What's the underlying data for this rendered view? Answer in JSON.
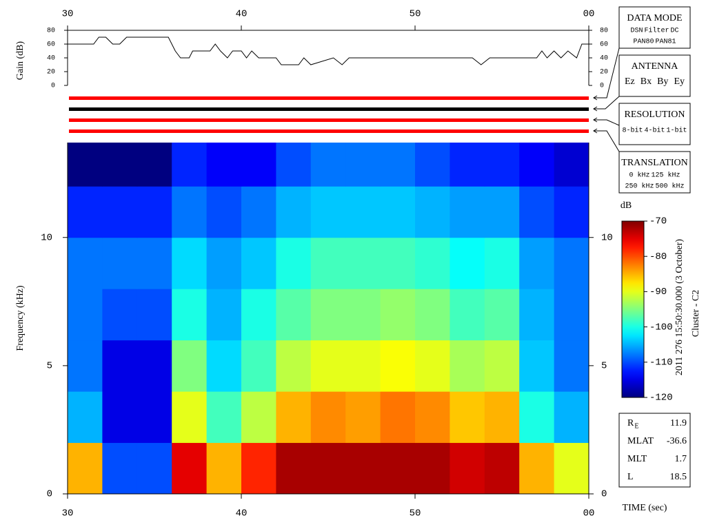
{
  "chart_data": [
    {
      "type": "line",
      "ylabel": "Gain (dB)",
      "color": "#000000",
      "x": [
        30,
        31.5,
        31.8,
        32.2,
        32.6,
        33,
        33.4,
        35.8,
        36.2,
        36.5,
        37.0,
        37.2,
        38.2,
        38.5,
        38.8,
        39.2,
        39.5,
        40,
        40.3,
        40.6,
        41,
        42,
        42.3,
        43.3,
        43.6,
        44,
        45.3,
        45.8,
        46.2,
        53.3,
        53.8,
        54.3,
        57,
        57.3,
        57.6,
        58,
        58.4,
        58.8,
        59.3,
        59.6,
        60
      ],
      "values": [
        60,
        60,
        70,
        70,
        60,
        60,
        70,
        70,
        50,
        40,
        40,
        50,
        50,
        60,
        50,
        40,
        50,
        50,
        40,
        50,
        40,
        40,
        30,
        30,
        40,
        30,
        40,
        30,
        40,
        40,
        30,
        40,
        40,
        50,
        40,
        50,
        40,
        50,
        40,
        60,
        60
      ],
      "xlim": [
        30,
        60
      ],
      "xticks": [
        30,
        40,
        50,
        {
          "value": 60,
          "label": "00"
        }
      ],
      "ylim": [
        0,
        80
      ],
      "yticks": [
        0,
        20,
        40,
        60,
        80
      ]
    },
    {
      "type": "heatmap",
      "ylabel": "Frequency (kHz)",
      "xlabel": "TIME (sec)",
      "colormap": "jet",
      "xlim": [
        30,
        60
      ],
      "xticks": [
        30,
        40,
        50,
        {
          "value": 60,
          "label": "00"
        }
      ],
      "ylim": [
        0,
        13.7
      ],
      "yticks": [
        0,
        5,
        10
      ],
      "x_bins": [
        30,
        32,
        34,
        36,
        38,
        40,
        42,
        44,
        46,
        48,
        50,
        52,
        54,
        56,
        58,
        60
      ],
      "y_bins": [
        0,
        2,
        4,
        6,
        8,
        10,
        12,
        13.7
      ],
      "z": [
        [
          -85,
          -110,
          -110,
          -75,
          -85,
          -78,
          -72,
          -72,
          -72,
          -72,
          -72,
          -74,
          -73,
          -85,
          -90
        ],
        [
          -105,
          -115,
          -115,
          -90,
          -98,
          -92,
          -85,
          -83,
          -84,
          -82,
          -83,
          -86,
          -85,
          -100,
          -105
        ],
        [
          -108,
          -115,
          -115,
          -95,
          -103,
          -98,
          -92,
          -90,
          -90,
          -89,
          -90,
          -93,
          -92,
          -104,
          -108
        ],
        [
          -108,
          -110,
          -110,
          -100,
          -105,
          -100,
          -97,
          -95,
          -95,
          -94,
          -95,
          -98,
          -97,
          -105,
          -108
        ],
        [
          -108,
          -108,
          -108,
          -103,
          -106,
          -104,
          -100,
          -98,
          -98,
          -98,
          -99,
          -101,
          -100,
          -106,
          -108
        ],
        [
          -112,
          -112,
          -112,
          -108,
          -110,
          -108,
          -105,
          -104,
          -104,
          -104,
          -105,
          -106,
          -106,
          -110,
          -112
        ],
        [
          -120,
          -120,
          -120,
          -112,
          -114,
          -114,
          -110,
          -108,
          -108,
          -108,
          -110,
          -112,
          -112,
          -114,
          -116
        ]
      ],
      "colorbar": {
        "label": "dB",
        "lim": [
          -120,
          -70
        ],
        "ticks": [
          -120,
          -110,
          -100,
          -90,
          -80,
          -70
        ]
      }
    }
  ],
  "status_boxes": [
    {
      "title": "DATA MODE",
      "rows": [
        [
          {
            "text": "DSN",
            "color": "#e00000"
          },
          {
            "text": "Filter",
            "color": "#00c000"
          },
          {
            "text": "DC",
            "color": "#0000e0"
          }
        ],
        [
          {
            "text": "PAN80",
            "color": "#000000"
          },
          {
            "text": "PAN81",
            "color": "#00c8c8"
          }
        ]
      ]
    },
    {
      "title": "ANTENNA",
      "rows": [
        [
          {
            "text": "Ez",
            "color": "#e00000"
          },
          {
            "text": "Bx",
            "color": "#00c000"
          },
          {
            "text": "By",
            "color": "#0000e0"
          },
          {
            "text": "Ey",
            "color": "#000000"
          }
        ]
      ]
    },
    {
      "title": "RESOLUTION",
      "rows": [
        [
          {
            "text": "8-bit",
            "color": "#e00000"
          },
          {
            "text": "4-bit",
            "color": "#00c000"
          },
          {
            "text": "1-bit",
            "color": "#0000e0"
          }
        ]
      ]
    },
    {
      "title": "TRANSLATION",
      "rows": [
        [
          {
            "text": "0 kHz",
            "color": "#e00000"
          },
          {
            "text": "125 kHz",
            "color": "#00c000"
          }
        ],
        [
          {
            "text": "250 kHz",
            "color": "#0000e0"
          },
          {
            "text": "500 kHz",
            "color": "#000000"
          }
        ]
      ]
    }
  ],
  "date": "2011 276 15:50:30.000 (3 October)",
  "spacecraft": "Cluster - C2",
  "orbit": [
    {
      "label": "R",
      "sub": "E",
      "value": "11.9"
    },
    {
      "label": "MLAT",
      "value": "-36.6"
    },
    {
      "label": "MLT",
      "value": "1.7"
    },
    {
      "label": "L",
      "value": "18.5"
    }
  ]
}
